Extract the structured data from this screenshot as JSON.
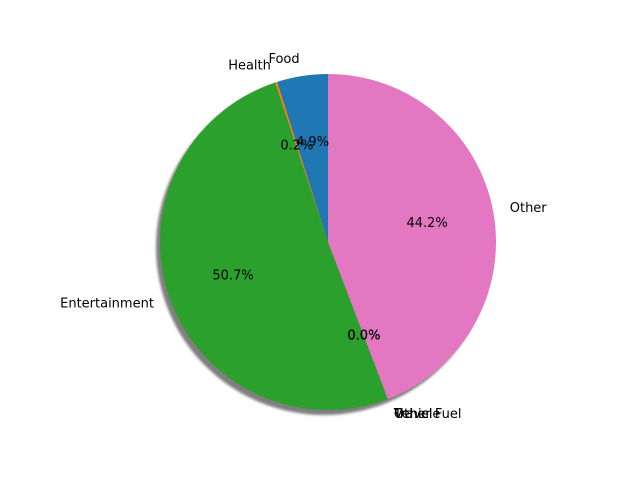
{
  "chart_data": {
    "type": "pie",
    "title": "",
    "shadow": true,
    "start_angle_deg": 90,
    "direction": "counterclockwise",
    "slices": [
      {
        "label": "Food",
        "value": 4.9,
        "pct_label": "4.9%",
        "color": "#1f77b4"
      },
      {
        "label": "Health",
        "value": 0.2,
        "pct_label": "0.2%",
        "color": "#ff7f0e"
      },
      {
        "label": "Entertainment",
        "value": 50.7,
        "pct_label": "50.7%",
        "color": "#2ca02c"
      },
      {
        "label": "Travel",
        "value": 0.0,
        "pct_label": "0.0%",
        "color": "#d62728"
      },
      {
        "label": "Vehicle",
        "value": 0.0,
        "pct_label": "0.0%",
        "color": "#9467bd"
      },
      {
        "label": "Other Fuel",
        "value": 0.0,
        "pct_label": "0.0%",
        "color": "#8c564b"
      },
      {
        "label": "Other",
        "value": 44.2,
        "pct_label": "44.2%",
        "color": "#e377c2"
      }
    ]
  }
}
